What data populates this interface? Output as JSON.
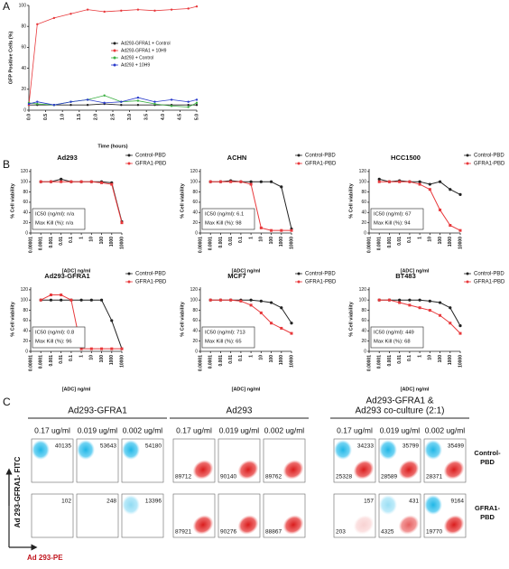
{
  "panel_labels": [
    "A",
    "B",
    "C"
  ],
  "chart_data": [
    {
      "type": "line",
      "x": [
        0,
        0.25,
        0.75,
        1.25,
        1.75,
        2.25,
        2.75,
        3.25,
        3.75,
        4.25,
        4.75,
        5
      ],
      "xlim": [
        0,
        5
      ],
      "xticks": [
        {
          "value": 0,
          "label": "0.0"
        },
        {
          "value": 0.5,
          "label": "0.5"
        },
        {
          "value": 1,
          "label": "1.0"
        },
        {
          "value": 1.5,
          "label": "1.5"
        },
        {
          "value": 2,
          "label": "2.0"
        },
        {
          "value": 2.5,
          "label": "2.5"
        },
        {
          "value": 3,
          "label": "3.0"
        },
        {
          "value": 3.5,
          "label": "3.5"
        },
        {
          "value": 4,
          "label": "4.0"
        },
        {
          "value": 4.5,
          "label": "4.5"
        },
        {
          "value": 5,
          "label": "5.0"
        }
      ],
      "ylim": [
        0,
        100
      ],
      "yticks": [
        0,
        20,
        40,
        60,
        80,
        100
      ],
      "xlabel": "Time (hours)",
      "ylabel": "GFP Positive Cells (%)",
      "legend": "right",
      "series": [
        {
          "name": "Ad293-GFRA1 + Control",
          "color": "#222222",
          "values": [
            5,
            5,
            5,
            5,
            5,
            6,
            5,
            5,
            5,
            5,
            5,
            5
          ]
        },
        {
          "name": "Ad293-GFRA1 + 10H9",
          "color": "#e8383b",
          "values": [
            5,
            82,
            88,
            92,
            96,
            94,
            95,
            96,
            95,
            96,
            97,
            99
          ]
        },
        {
          "name": "Ad293 + Control",
          "color": "#3cb043",
          "values": [
            7,
            6,
            5,
            8,
            10,
            14,
            8,
            9,
            6,
            4,
            3,
            7
          ]
        },
        {
          "name": "Ad293 + 10H9",
          "color": "#2a3bcc",
          "values": [
            6,
            8,
            5,
            8,
            10,
            7,
            8,
            12,
            8,
            10,
            8,
            10
          ]
        }
      ]
    },
    {
      "type": "line",
      "title": "Ad293",
      "xscale": "log",
      "x": [
        0.0001,
        0.001,
        0.01,
        0.1,
        1,
        10,
        100,
        1000,
        10000
      ],
      "xlim": [
        1e-05,
        10000
      ],
      "xticks": [
        1e-05,
        0.0001,
        0.001,
        0.01,
        0.1,
        1,
        10,
        100,
        1000,
        10000
      ],
      "ylim": [
        0,
        125
      ],
      "yticks": [
        0,
        20,
        40,
        60,
        80,
        100,
        120
      ],
      "xlabel": "[ADC] ng/ml",
      "ylabel": "% Cell viability",
      "legend": "top-right",
      "annotations": [
        "IC50 (ng/ml): n/a",
        "Max Kill (%): n/a"
      ],
      "series": [
        {
          "name": "Control-PBD",
          "color": "#222222",
          "values": [
            100,
            100,
            105,
            100,
            100,
            100,
            100,
            98,
            22
          ]
        },
        {
          "name": "GFRA1-PBD",
          "color": "#e8383b",
          "values": [
            100,
            100,
            100,
            100,
            100,
            100,
            98,
            95,
            20
          ]
        }
      ]
    },
    {
      "type": "line",
      "title": "ACHN",
      "xscale": "log",
      "x": [
        0.0001,
        0.001,
        0.01,
        0.1,
        1,
        10,
        100,
        1000,
        10000
      ],
      "xlim": [
        1e-05,
        10000
      ],
      "xticks": [
        1e-05,
        0.0001,
        0.001,
        0.01,
        0.1,
        1,
        10,
        100,
        1000,
        10000
      ],
      "ylim": [
        0,
        125
      ],
      "yticks": [
        0,
        20,
        40,
        60,
        80,
        100,
        120
      ],
      "xlabel": "[ADC] ng/ml",
      "ylabel": "% Cell viability",
      "legend": "top-right",
      "annotations": [
        "IC50 (ng/ml): 6.1",
        "Max Kill (%): 98"
      ],
      "series": [
        {
          "name": "Control-PBD",
          "color": "#222222",
          "values": [
            100,
            100,
            102,
            100,
            100,
            100,
            100,
            90,
            8
          ]
        },
        {
          "name": "GFRA1-PBD",
          "color": "#e8383b",
          "values": [
            100,
            100,
            100,
            100,
            95,
            10,
            5,
            5,
            5
          ]
        }
      ]
    },
    {
      "type": "line",
      "title": "HCC1500",
      "xscale": "log",
      "x": [
        0.0001,
        0.001,
        0.01,
        0.1,
        1,
        10,
        100,
        1000,
        10000
      ],
      "xlim": [
        1e-05,
        10000
      ],
      "xticks": [
        1e-05,
        0.0001,
        0.001,
        0.01,
        0.1,
        1,
        10,
        100,
        1000,
        10000
      ],
      "ylim": [
        0,
        125
      ],
      "yticks": [
        0,
        20,
        40,
        60,
        80,
        100,
        120
      ],
      "xlabel": "[ADC] ng/ml",
      "ylabel": "% Cell viability",
      "legend": "top-right",
      "annotations": [
        "IC50 (ng/ml): 67",
        "Max Kill (%): 94"
      ],
      "series": [
        {
          "name": "Control-PBD",
          "color": "#222222",
          "values": [
            105,
            100,
            102,
            100,
            100,
            95,
            100,
            85,
            75
          ]
        },
        {
          "name": "GFRA1-PBD",
          "color": "#e8383b",
          "values": [
            100,
            100,
            100,
            100,
            95,
            85,
            45,
            15,
            5
          ]
        }
      ]
    },
    {
      "type": "line",
      "title": "Ad293-GFRA1",
      "xscale": "log",
      "x": [
        0.0001,
        0.001,
        0.01,
        0.1,
        1,
        10,
        100,
        1000,
        10000
      ],
      "xlim": [
        1e-05,
        10000
      ],
      "xticks": [
        1e-05,
        0.0001,
        0.001,
        0.01,
        0.1,
        1,
        10,
        100,
        1000,
        10000
      ],
      "ylim": [
        0,
        125
      ],
      "yticks": [
        0,
        20,
        40,
        60,
        80,
        100,
        120
      ],
      "xlabel": "[ADC] ng/ml",
      "ylabel": "% Cell viability",
      "legend": "top-right",
      "annotations": [
        "IC50 (ng/ml): 0.8",
        "Max Kill (%): 96"
      ],
      "series": [
        {
          "name": "Control-PBD",
          "color": "#222222",
          "values": [
            100,
            100,
            100,
            100,
            100,
            100,
            100,
            60,
            5
          ]
        },
        {
          "name": "GFRA1-PBD",
          "color": "#e8383b",
          "values": [
            100,
            110,
            110,
            100,
            5,
            5,
            5,
            5,
            5
          ]
        }
      ]
    },
    {
      "type": "line",
      "title": "MCF7",
      "xscale": "log",
      "x": [
        0.0001,
        0.001,
        0.01,
        0.1,
        1,
        10,
        100,
        1000,
        10000
      ],
      "xlim": [
        1e-05,
        10000
      ],
      "xticks": [
        1e-05,
        0.0001,
        0.001,
        0.01,
        0.1,
        1,
        10,
        100,
        1000,
        10000
      ],
      "ylim": [
        0,
        125
      ],
      "yticks": [
        0,
        20,
        40,
        60,
        80,
        100,
        120
      ],
      "xlabel": "[ADC] ng/ml",
      "ylabel": "% Cell viability",
      "legend": "top-right",
      "annotations": [
        "IC50 (ng/ml): 713",
        "Max Kill (%): 65"
      ],
      "series": [
        {
          "name": "Control-PBD",
          "color": "#222222",
          "values": [
            100,
            100,
            100,
            100,
            100,
            98,
            95,
            85,
            55
          ]
        },
        {
          "name": "GFRA1-PBD",
          "color": "#e8383b",
          "values": [
            100,
            100,
            100,
            98,
            90,
            75,
            55,
            45,
            35
          ]
        }
      ]
    },
    {
      "type": "line",
      "title": "BT483",
      "xscale": "log",
      "x": [
        0.0001,
        0.001,
        0.01,
        0.1,
        1,
        10,
        100,
        1000,
        10000
      ],
      "xlim": [
        1e-05,
        10000
      ],
      "xticks": [
        1e-05,
        0.0001,
        0.001,
        0.01,
        0.1,
        1,
        10,
        100,
        1000,
        10000
      ],
      "ylim": [
        0,
        125
      ],
      "yticks": [
        0,
        20,
        40,
        60,
        80,
        100,
        120
      ],
      "xlabel": "[ADC] ng/ml",
      "ylabel": "% Cell viability",
      "legend": "top-right",
      "annotations": [
        "IC50 (ng/ml): 449",
        "Max Kill (%): 68"
      ],
      "series": [
        {
          "name": "Control-PBD",
          "color": "#222222",
          "values": [
            100,
            100,
            100,
            100,
            100,
            98,
            95,
            85,
            50
          ]
        },
        {
          "name": "GFRA1-PBD",
          "color": "#e8383b",
          "values": [
            100,
            100,
            95,
            90,
            85,
            80,
            70,
            55,
            35
          ]
        }
      ]
    }
  ],
  "flow": {
    "ylabel": "Ad 293-GFRA1- FITC",
    "xlabel": "Ad 293-PE",
    "groups": [
      {
        "title": [
          "Ad293-GFRA1"
        ],
        "concentrations": [
          "0.17 ug/ml",
          "0.019 ug/ml",
          "0.002 ug/ml"
        ]
      },
      {
        "title": [
          "Ad293"
        ],
        "concentrations": [
          "0.17 ug/ml",
          "0.019 ug/ml",
          "0.002 ug/ml"
        ]
      },
      {
        "title": [
          "Ad293-GFRA1 &",
          "Ad293 co-culture (2:1)"
        ],
        "concentrations": [
          "0.17 ug/ml",
          "0.019 ug/ml",
          "0.002 ug/ml"
        ]
      }
    ],
    "rows": [
      {
        "label": [
          "Control-",
          "PBD"
        ],
        "counts": [
          [
            40135
          ],
          [
            53643
          ],
          [
            54180
          ],
          [
            89712
          ],
          [
            90140
          ],
          [
            89762
          ],
          [
            34233,
            25328
          ],
          [
            35799,
            28589
          ],
          [
            35499,
            28371
          ]
        ]
      },
      {
        "label": [
          "GFRA1-",
          "PBD"
        ],
        "counts": [
          [
            102
          ],
          [
            248
          ],
          [
            13396
          ],
          [
            87921
          ],
          [
            90276
          ],
          [
            88867
          ],
          [
            157,
            203
          ],
          [
            431,
            4325
          ],
          [
            9164,
            19770
          ]
        ]
      }
    ]
  }
}
